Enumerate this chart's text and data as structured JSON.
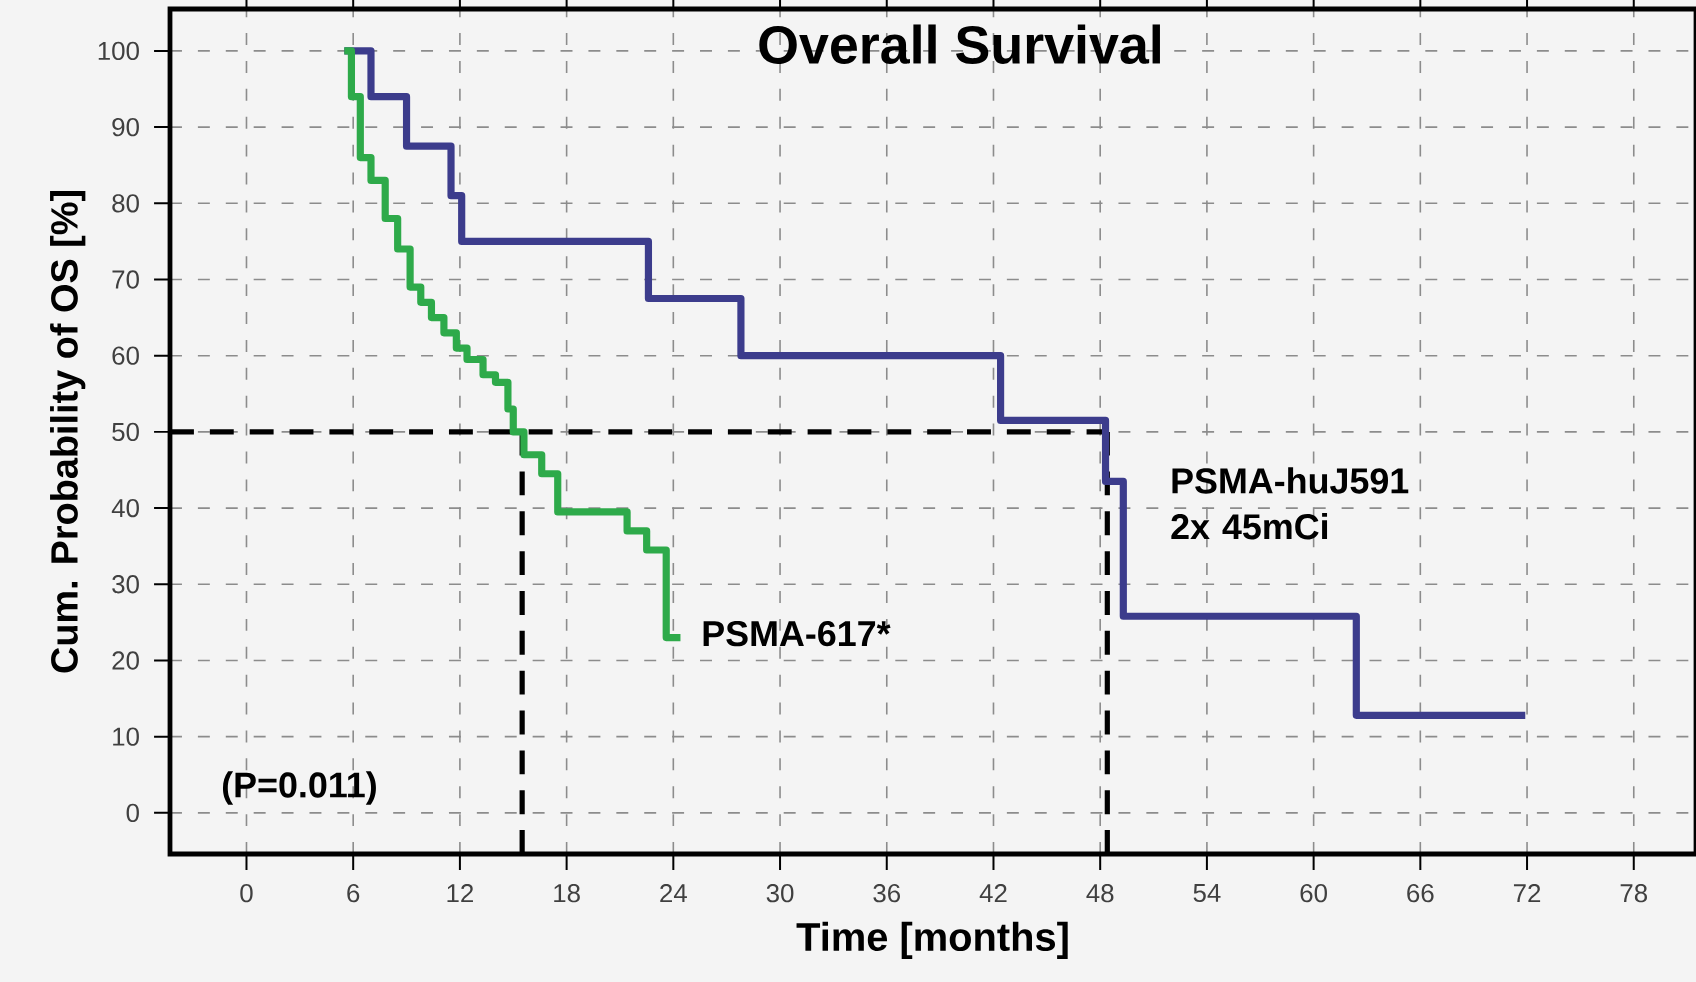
{
  "chart_data": {
    "type": "step",
    "title": "Overall Survival",
    "xlabel": "Time [months]",
    "ylabel": "Cum. Probability of OS [%]",
    "xlim": [
      -4.3,
      81.5
    ],
    "ylim": [
      -5.4,
      105.5
    ],
    "xticks": [
      0,
      6,
      12,
      18,
      24,
      30,
      36,
      42,
      48,
      54,
      60,
      66,
      72,
      78
    ],
    "yticks": [
      0,
      10,
      20,
      30,
      40,
      50,
      60,
      70,
      80,
      90,
      100
    ],
    "grid": true,
    "marker": "none",
    "line_style": "solid",
    "series": [
      {
        "name": "PSMA-huJ591 2x 45mCi",
        "color": "#3c3c8c",
        "x": [
          5.5,
          7.0,
          9.0,
          11.5,
          12.1,
          22.6,
          27.8,
          42.4,
          48.3,
          49.3,
          62.4,
          71.9
        ],
        "values": [
          100,
          94,
          87.5,
          81,
          75,
          67.5,
          60,
          51.5,
          43.5,
          25.8,
          12.8,
          12.8
        ]
      },
      {
        "name": "PSMA-617*",
        "color": "#2eaa4a",
        "x": [
          5.5,
          5.9,
          6.4,
          7.0,
          7.8,
          8.5,
          9.2,
          9.8,
          10.4,
          11.1,
          11.8,
          12.4,
          13.3,
          14.0,
          14.7,
          15.0,
          15.6,
          16.6,
          17.5,
          21.4,
          22.5,
          23.6,
          24.4
        ],
        "values": [
          100,
          94,
          86,
          83,
          78,
          74,
          69,
          67,
          65,
          63,
          61,
          59.5,
          57.5,
          56.5,
          53,
          50,
          47,
          44.5,
          39.5,
          37,
          34.5,
          23,
          23
        ]
      }
    ],
    "ref_lines": [
      {
        "axis": "y",
        "value": 50,
        "color": "#000000",
        "line_style": "dashed"
      },
      {
        "axis": "x",
        "value": 15.5,
        "color": "#000000",
        "line_style": "dashed"
      },
      {
        "axis": "x",
        "value": 48.4,
        "color": "#000000",
        "line_style": "dashed"
      }
    ],
    "annotations": [
      "(P=0.011)"
    ]
  }
}
